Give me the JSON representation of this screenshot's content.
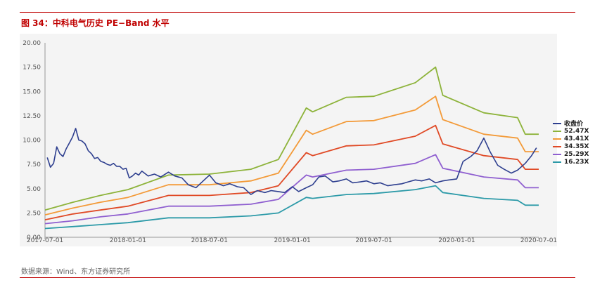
{
  "header": {
    "title": "图 34：中科电气历史 PE−Band 水平"
  },
  "footer": {
    "source": "数据来源：Wind、东方证券研究所"
  },
  "chart_data": {
    "type": "line",
    "title": "图 34：中科电气历史 PE−Band 水平",
    "xlabel": "",
    "ylabel": "",
    "ylim": [
      0,
      20
    ],
    "y_ticks": [
      "0.00",
      "2.50",
      "5.00",
      "7.50",
      "10.00",
      "12.50",
      "15.00",
      "17.50",
      "20.00"
    ],
    "x_ticks": [
      "2017-07-01",
      "2018-01-01",
      "2018-07-01",
      "2019-01-01",
      "2019-07-01",
      "2020-01-01",
      "2020-07-01"
    ],
    "grid": false,
    "legend_position": "right",
    "series": [
      {
        "name": "收盘价",
        "color": "#2e3f8f",
        "x": [
          "2017-07-06",
          "2017-07-13",
          "2017-07-20",
          "2017-07-27",
          "2017-08-03",
          "2017-08-10",
          "2017-08-17",
          "2017-08-24",
          "2017-08-31",
          "2017-09-07",
          "2017-09-14",
          "2017-09-21",
          "2017-09-28",
          "2017-10-05",
          "2017-10-12",
          "2017-10-19",
          "2017-10-26",
          "2017-11-02",
          "2017-11-09",
          "2017-11-16",
          "2017-11-23",
          "2017-11-30",
          "2017-12-07",
          "2017-12-14",
          "2017-12-21",
          "2017-12-28",
          "2018-01-04",
          "2018-01-11",
          "2018-01-18",
          "2018-01-25",
          "2018-02-01",
          "2018-02-15",
          "2018-03-01",
          "2018-03-15",
          "2018-04-01",
          "2018-04-15",
          "2018-05-01",
          "2018-05-15",
          "2018-06-01",
          "2018-06-15",
          "2018-07-01",
          "2018-07-15",
          "2018-08-01",
          "2018-08-15",
          "2018-09-01",
          "2018-09-15",
          "2018-10-01",
          "2018-10-15",
          "2018-11-01",
          "2018-11-15",
          "2018-12-01",
          "2018-12-15",
          "2019-01-01",
          "2019-01-15",
          "2019-02-01",
          "2019-02-15",
          "2019-03-01",
          "2019-03-15",
          "2019-04-01",
          "2019-04-15",
          "2019-05-01",
          "2019-05-15",
          "2019-06-01",
          "2019-06-15",
          "2019-07-01",
          "2019-07-15",
          "2019-08-01",
          "2019-08-15",
          "2019-09-01",
          "2019-09-15",
          "2019-10-01",
          "2019-10-15",
          "2019-11-01",
          "2019-11-15",
          "2019-12-01",
          "2019-12-15",
          "2020-01-01",
          "2020-01-15",
          "2020-02-01",
          "2020-02-15",
          "2020-03-01",
          "2020-03-15",
          "2020-04-01",
          "2020-04-15",
          "2020-05-01",
          "2020-05-15",
          "2020-06-01",
          "2020-06-15",
          "2020-06-26"
        ],
        "values": [
          8.2,
          7.2,
          7.6,
          9.3,
          8.6,
          8.3,
          9.1,
          9.7,
          10.3,
          11.2,
          10.0,
          9.9,
          9.6,
          8.9,
          8.6,
          8.1,
          8.2,
          7.8,
          7.7,
          7.5,
          7.4,
          7.6,
          7.3,
          7.3,
          7.0,
          7.1,
          6.1,
          6.3,
          6.6,
          6.4,
          6.8,
          6.3,
          6.5,
          6.2,
          6.7,
          6.3,
          6.1,
          5.4,
          5.1,
          5.7,
          6.4,
          5.6,
          5.3,
          5.5,
          5.2,
          5.1,
          4.4,
          4.8,
          4.6,
          4.8,
          4.7,
          4.6,
          5.2,
          4.7,
          5.1,
          5.4,
          6.2,
          6.3,
          5.7,
          5.8,
          6.0,
          5.6,
          5.7,
          5.8,
          5.5,
          5.6,
          5.3,
          5.4,
          5.5,
          5.7,
          5.9,
          5.8,
          6.0,
          5.6,
          5.8,
          5.9,
          6.0,
          7.8,
          8.3,
          8.9,
          10.2,
          8.8,
          7.4,
          7.0,
          6.6,
          6.9,
          7.6,
          8.4,
          9.2
        ]
      },
      {
        "name": "52.47X",
        "color": "#8db33a",
        "x": [
          "2017-07-01",
          "2017-09-01",
          "2017-11-01",
          "2018-01-01",
          "2018-04-01",
          "2018-07-01",
          "2018-10-01",
          "2018-12-01",
          "2019-02-01",
          "2019-02-15",
          "2019-05-01",
          "2019-07-01",
          "2019-10-01",
          "2019-11-15",
          "2019-12-01",
          "2020-03-01",
          "2020-05-15",
          "2020-06-01",
          "2020-07-01"
        ],
        "values": [
          2.8,
          3.6,
          4.3,
          4.9,
          6.4,
          6.5,
          7.0,
          8.0,
          13.3,
          12.9,
          14.4,
          14.5,
          15.9,
          17.5,
          14.6,
          12.8,
          12.3,
          10.6,
          10.6
        ]
      },
      {
        "name": "43.41X",
        "color": "#f39a38",
        "x": [
          "2017-07-01",
          "2017-09-01",
          "2017-11-01",
          "2018-01-01",
          "2018-04-01",
          "2018-07-01",
          "2018-10-01",
          "2018-12-01",
          "2019-02-01",
          "2019-02-15",
          "2019-05-01",
          "2019-07-01",
          "2019-10-01",
          "2019-11-15",
          "2019-12-01",
          "2020-03-01",
          "2020-05-15",
          "2020-06-01",
          "2020-07-01"
        ],
        "values": [
          2.3,
          3.0,
          3.6,
          4.1,
          5.4,
          5.4,
          5.8,
          6.6,
          11.0,
          10.6,
          11.9,
          12.0,
          13.1,
          14.5,
          12.1,
          10.6,
          10.2,
          8.8,
          8.8
        ]
      },
      {
        "name": "34.35X",
        "color": "#e04a26",
        "x": [
          "2017-07-01",
          "2017-09-01",
          "2017-11-01",
          "2018-01-01",
          "2018-04-01",
          "2018-07-01",
          "2018-10-01",
          "2018-12-01",
          "2019-02-01",
          "2019-02-15",
          "2019-05-01",
          "2019-07-01",
          "2019-10-01",
          "2019-11-15",
          "2019-12-01",
          "2020-03-01",
          "2020-05-15",
          "2020-06-01",
          "2020-07-01"
        ],
        "values": [
          1.8,
          2.4,
          2.8,
          3.2,
          4.3,
          4.3,
          4.6,
          5.3,
          8.7,
          8.4,
          9.4,
          9.5,
          10.4,
          11.5,
          9.6,
          8.4,
          8.0,
          7.0,
          7.0
        ]
      },
      {
        "name": "25.29X",
        "color": "#8f5fd0",
        "x": [
          "2017-07-01",
          "2017-09-01",
          "2017-11-01",
          "2018-01-01",
          "2018-04-01",
          "2018-07-01",
          "2018-10-01",
          "2018-12-01",
          "2019-02-01",
          "2019-02-15",
          "2019-05-01",
          "2019-07-01",
          "2019-10-01",
          "2019-11-15",
          "2019-12-01",
          "2020-03-01",
          "2020-05-15",
          "2020-06-01",
          "2020-07-01"
        ],
        "values": [
          1.4,
          1.7,
          2.1,
          2.4,
          3.2,
          3.2,
          3.4,
          3.9,
          6.4,
          6.2,
          6.9,
          7.0,
          7.6,
          8.5,
          7.1,
          6.2,
          5.9,
          5.1,
          5.1
        ]
      },
      {
        "name": "16.23X",
        "color": "#2c9aa8",
        "x": [
          "2017-07-01",
          "2017-09-01",
          "2017-11-01",
          "2018-01-01",
          "2018-04-01",
          "2018-07-01",
          "2018-10-01",
          "2018-12-01",
          "2019-02-01",
          "2019-02-15",
          "2019-05-01",
          "2019-07-01",
          "2019-10-01",
          "2019-11-15",
          "2019-12-01",
          "2020-03-01",
          "2020-05-15",
          "2020-06-01",
          "2020-07-01"
        ],
        "values": [
          0.9,
          1.1,
          1.3,
          1.5,
          2.0,
          2.0,
          2.2,
          2.5,
          4.1,
          4.0,
          4.4,
          4.5,
          4.9,
          5.3,
          4.6,
          4.0,
          3.8,
          3.3,
          3.3
        ]
      }
    ]
  }
}
